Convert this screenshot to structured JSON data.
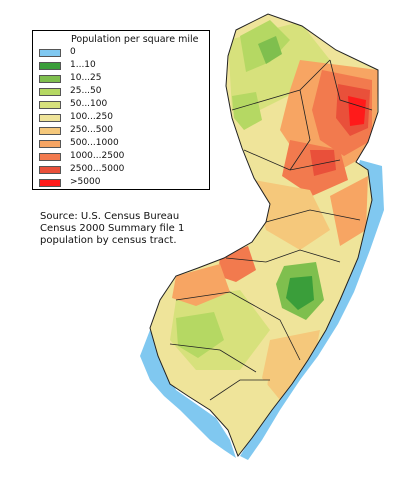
{
  "legend": {
    "title": "Population per square mile",
    "items": [
      {
        "label": "0",
        "color": "#80c8f0"
      },
      {
        "label": "1...10",
        "color": "#3a9e3a"
      },
      {
        "label": "10...25",
        "color": "#7fbf4e"
      },
      {
        "label": "25...50",
        "color": "#b5d863"
      },
      {
        "label": "50...100",
        "color": "#d7e17c"
      },
      {
        "label": "100...250",
        "color": "#efe49a"
      },
      {
        "label": "250...500",
        "color": "#f5c87b"
      },
      {
        "label": "500...1000",
        "color": "#f7a563"
      },
      {
        "label": "1000...2500",
        "color": "#f27a4e"
      },
      {
        "label": "2500...5000",
        "color": "#e9503a"
      },
      {
        "label": ">5000",
        "color": "#ff1a1a"
      }
    ]
  },
  "source": {
    "lines": [
      "Source: U.S. Census Bureau",
      "Census 2000 Summary file 1",
      "population by census tract."
    ]
  },
  "map": {
    "state": "New Jersey",
    "water_color": "#80c8f0",
    "border_color": "#222222"
  }
}
